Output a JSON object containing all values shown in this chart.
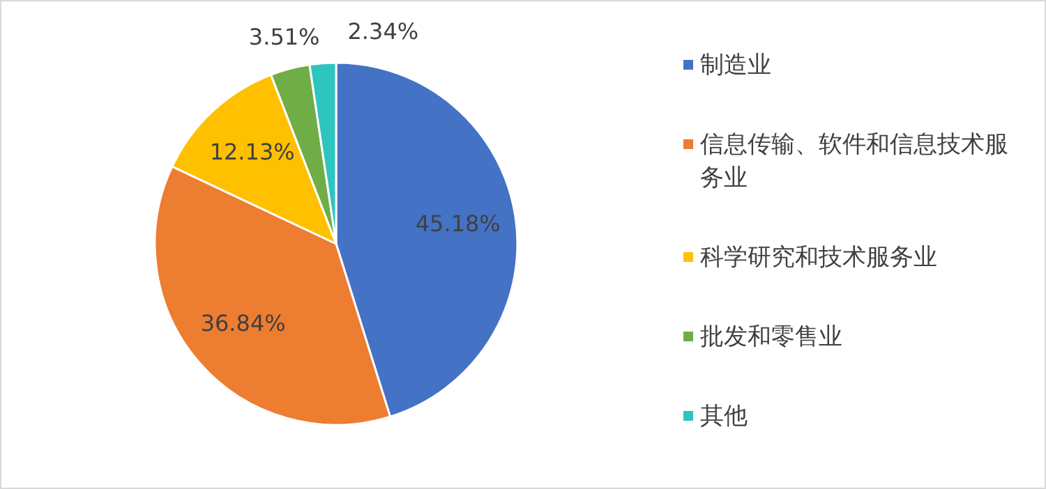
{
  "chart_data": {
    "type": "pie",
    "categories": [
      "制造业",
      "信息传输、软件和信息技术服务业",
      "科学研究和技术服务业",
      "批发和零售业",
      "其他"
    ],
    "values": [
      45.18,
      36.84,
      12.13,
      3.51,
      2.34
    ],
    "colors": [
      "#4472c4",
      "#ed7d31",
      "#ffc000",
      "#70ad47",
      "#2ec4c0"
    ],
    "value_labels": [
      "45.18%",
      "36.84%",
      "12.13%",
      "3.51%",
      "2.34%"
    ],
    "legend": "right"
  }
}
